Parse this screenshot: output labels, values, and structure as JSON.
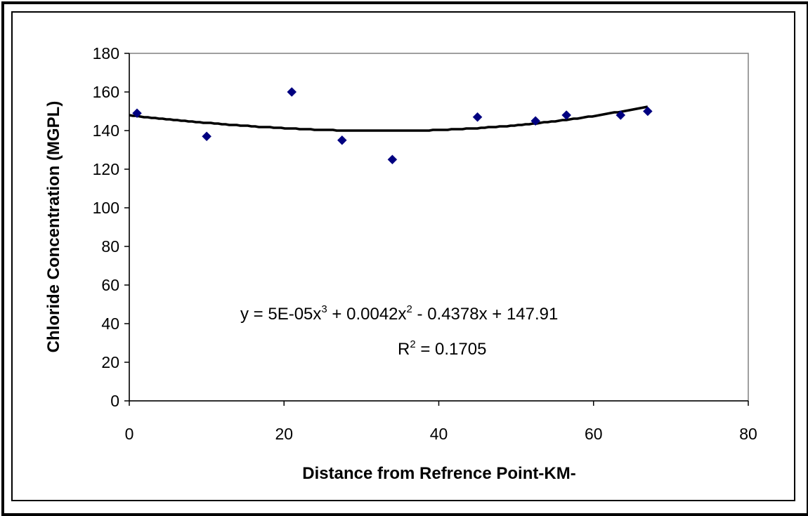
{
  "chart_data": {
    "type": "scatter",
    "xlabel": "Distance from Refrence Point-KM-",
    "ylabel": "Chloride Concentration (MGPL)",
    "xlim": [
      0,
      80
    ],
    "ylim": [
      0,
      180
    ],
    "x_ticks": [
      "0",
      "20",
      "40",
      "60",
      "80"
    ],
    "y_ticks": [
      "0",
      "20",
      "40",
      "60",
      "80",
      "100",
      "120",
      "140",
      "160",
      "180"
    ],
    "grid": false,
    "legend": "none",
    "series": [
      {
        "points": [
          {
            "x": 1,
            "y": 149
          },
          {
            "x": 10,
            "y": 137
          },
          {
            "x": 21,
            "y": 160
          },
          {
            "x": 27.5,
            "y": 135
          },
          {
            "x": 34,
            "y": 125
          },
          {
            "x": 45,
            "y": 147
          },
          {
            "x": 52.5,
            "y": 145
          },
          {
            "x": 56.5,
            "y": 148
          },
          {
            "x": 63.5,
            "y": 148
          },
          {
            "x": 67,
            "y": 150
          }
        ],
        "color": "#000080",
        "marker": "diamond"
      }
    ],
    "trendline": {
      "type": "polynomial",
      "order": 3,
      "coefficients": [
        5e-05,
        0.0042,
        -0.4378,
        147.91
      ],
      "x_range": [
        0,
        67
      ],
      "color": "#000000"
    },
    "annotations": {
      "equation": {
        "prefix": "y = 5E-05x",
        "exp1": "3",
        "mid": " + 0.0042x",
        "exp2": "2",
        "suffix": " - 0.4378x + 147.91"
      },
      "r_squared": {
        "prefix": "R",
        "exp": "2",
        "suffix": " = 0.1705"
      }
    }
  }
}
